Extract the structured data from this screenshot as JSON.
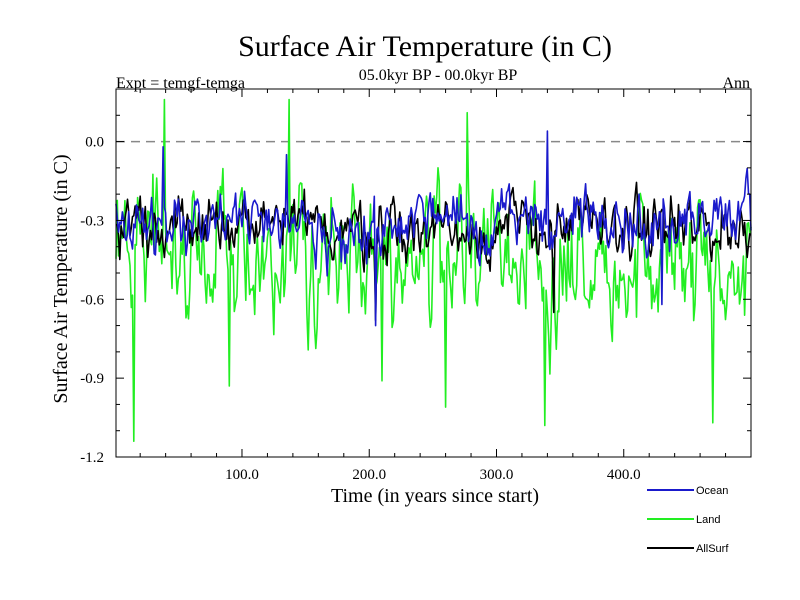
{
  "chart_data": {
    "type": "line",
    "title": "Surface Air Temperature (in C)",
    "subtitle": "05.0kyr BP - 00.0kyr BP",
    "left_annotation": "Expt = temgf-temga",
    "right_annotation": "Ann",
    "xlabel": "Time (in years since start)",
    "ylabel": "Surface Air Temperature (in C)",
    "xlim": [
      1,
      500
    ],
    "ylim": [
      -1.2,
      0.2
    ],
    "x_ticks": [
      100,
      200,
      300,
      400
    ],
    "x_tick_labels": [
      "100.0",
      "200.0",
      "300.0",
      "400.0"
    ],
    "y_ticks": [
      -1.2,
      -0.9,
      -0.6,
      -0.3,
      0.0
    ],
    "y_tick_labels": [
      "-1.2",
      "-0.9",
      "-0.6",
      "-0.3",
      "0.0"
    ],
    "reference_line": {
      "y": 0.0,
      "style": "dashed",
      "color": "#888888"
    },
    "legend_position": "bottom-right",
    "series": [
      {
        "name": "Land",
        "color": "#22ee22",
        "seed": 7,
        "mean": -0.43,
        "amp": 0.19,
        "spikes": [
          [
            39,
            0.16
          ],
          [
            137,
            0.16
          ],
          [
            277,
            0.11
          ],
          [
            15,
            -1.14
          ],
          [
            338,
            -1.08
          ],
          [
            470,
            -1.07
          ],
          [
            260,
            -1.01
          ],
          [
            90,
            -0.93
          ],
          [
            210,
            -0.91
          ]
        ]
      },
      {
        "name": "AllSurf",
        "color": "#000000",
        "seed": 3,
        "mean": -0.33,
        "amp": 0.09,
        "spikes": [
          [
            205,
            -0.68
          ],
          [
            345,
            -0.65
          ]
        ]
      },
      {
        "name": "Ocean",
        "color": "#1a1acc",
        "seed": 11,
        "mean": -0.3,
        "amp": 0.09,
        "spikes": [
          [
            340,
            0.04
          ],
          [
            38,
            -0.02
          ],
          [
            135,
            -0.05
          ],
          [
            205,
            -0.7
          ],
          [
            430,
            -0.62
          ]
        ]
      }
    ],
    "legend_order": [
      "Ocean",
      "Land",
      "AllSurf"
    ]
  }
}
